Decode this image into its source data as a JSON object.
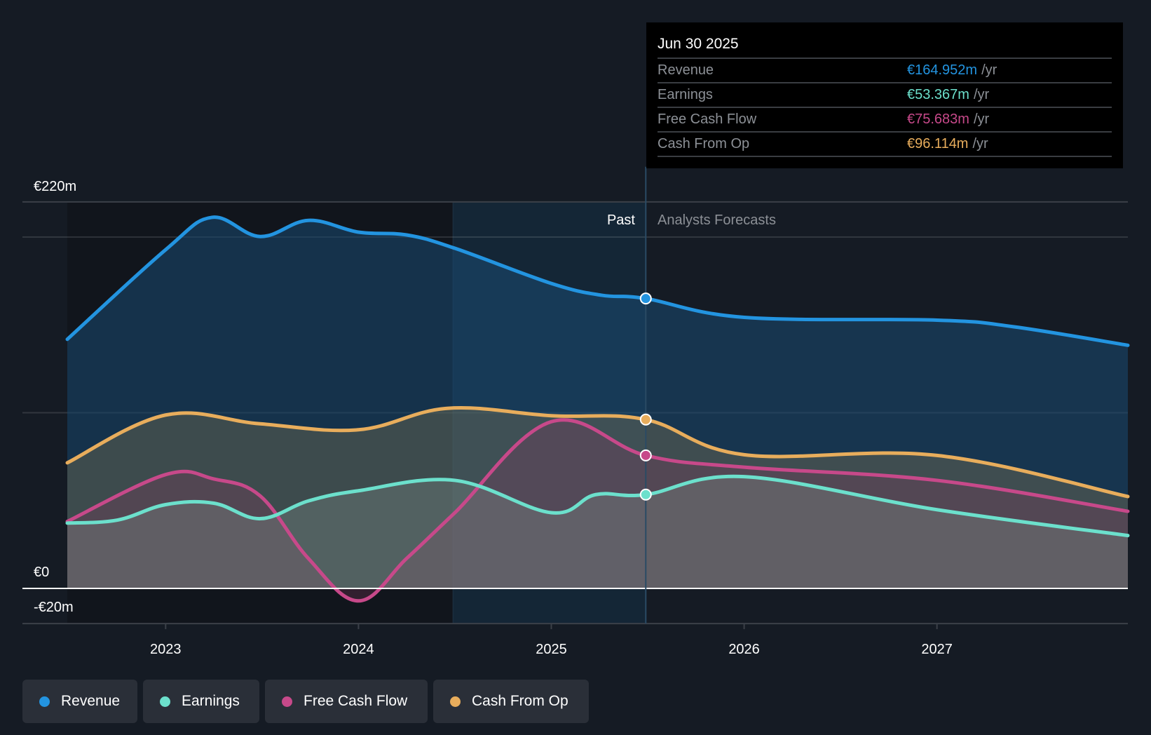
{
  "tooltip": {
    "date": "Jun 30 2025",
    "unit": "/yr",
    "rows": [
      {
        "label": "Revenue",
        "value": "€164.952m",
        "color": "#2394e0"
      },
      {
        "label": "Earnings",
        "value": "€53.367m",
        "color": "#6ce0cc"
      },
      {
        "label": "Free Cash Flow",
        "value": "€75.683m",
        "color": "#c7498a"
      },
      {
        "label": "Cash From Op",
        "value": "€96.114m",
        "color": "#e8ad5c"
      }
    ]
  },
  "legend": [
    {
      "label": "Revenue",
      "color": "#2394e0"
    },
    {
      "label": "Earnings",
      "color": "#6ce0cc"
    },
    {
      "label": "Free Cash Flow",
      "color": "#c7498a"
    },
    {
      "label": "Cash From Op",
      "color": "#e8ad5c"
    }
  ],
  "chart_data": {
    "type": "area",
    "title": "",
    "xlabel": "",
    "ylabel": "",
    "x_ticks": [
      "2023",
      "2024",
      "2025",
      "2026",
      "2027"
    ],
    "y_ticks": [
      {
        "value": 220,
        "label": "€220m"
      },
      {
        "value": 0,
        "label": "€0"
      },
      {
        "value": -20,
        "label": "-€20m"
      }
    ],
    "ylim": [
      -20,
      220
    ],
    "xlim": [
      2022.49,
      2027.99
    ],
    "divider_x": 2025.49,
    "past_shade_start": 2024.49,
    "region_labels": {
      "past": "Past",
      "forecast": "Analysts Forecasts"
    },
    "grid": true,
    "legend_position": "bottom-left",
    "series": [
      {
        "name": "Revenue",
        "color": "#2394e0",
        "points": [
          [
            2022.49,
            141.8
          ],
          [
            2023.0,
            192.8
          ],
          [
            2023.24,
            211.2
          ],
          [
            2023.49,
            200.3
          ],
          [
            2023.74,
            209.5
          ],
          [
            2024.0,
            202.8
          ],
          [
            2024.25,
            201.2
          ],
          [
            2024.5,
            193.6
          ],
          [
            2025.0,
            173.6
          ],
          [
            2025.26,
            166.9
          ],
          [
            2025.49,
            165.0
          ],
          [
            2026.0,
            154.3
          ],
          [
            2027.0,
            152.7
          ],
          [
            2027.4,
            148.9
          ],
          [
            2027.99,
            138.4
          ]
        ]
      },
      {
        "name": "Cash From Op",
        "color": "#e8ad5c",
        "points": [
          [
            2022.49,
            71.5
          ],
          [
            2023.0,
            98.7
          ],
          [
            2023.49,
            93.7
          ],
          [
            2024.0,
            90.3
          ],
          [
            2024.46,
            102.5
          ],
          [
            2025.0,
            98.3
          ],
          [
            2025.49,
            96.1
          ],
          [
            2026.0,
            76.1
          ],
          [
            2027.0,
            75.7
          ],
          [
            2027.99,
            52.3
          ]
        ]
      },
      {
        "name": "Free Cash Flow",
        "color": "#c7498a",
        "points": [
          [
            2022.49,
            38.1
          ],
          [
            2023.0,
            64.8
          ],
          [
            2023.25,
            62.3
          ],
          [
            2023.49,
            52.7
          ],
          [
            2023.74,
            17.1
          ],
          [
            2024.0,
            -7.1
          ],
          [
            2024.25,
            17.1
          ],
          [
            2024.5,
            43.1
          ],
          [
            2025.0,
            94.9
          ],
          [
            2025.49,
            75.7
          ],
          [
            2026.0,
            69.0
          ],
          [
            2027.0,
            61.5
          ],
          [
            2027.99,
            43.9
          ]
        ]
      },
      {
        "name": "Earnings",
        "color": "#6ce0cc",
        "points": [
          [
            2022.49,
            37.2
          ],
          [
            2022.75,
            38.9
          ],
          [
            2023.0,
            47.7
          ],
          [
            2023.25,
            48.5
          ],
          [
            2023.49,
            39.7
          ],
          [
            2023.74,
            49.8
          ],
          [
            2024.0,
            55.6
          ],
          [
            2024.5,
            61.5
          ],
          [
            2025.0,
            43.1
          ],
          [
            2025.23,
            53.4
          ],
          [
            2025.49,
            53.4
          ],
          [
            2026.0,
            63.6
          ],
          [
            2027.0,
            44.8
          ],
          [
            2027.99,
            30.1
          ]
        ]
      }
    ]
  }
}
